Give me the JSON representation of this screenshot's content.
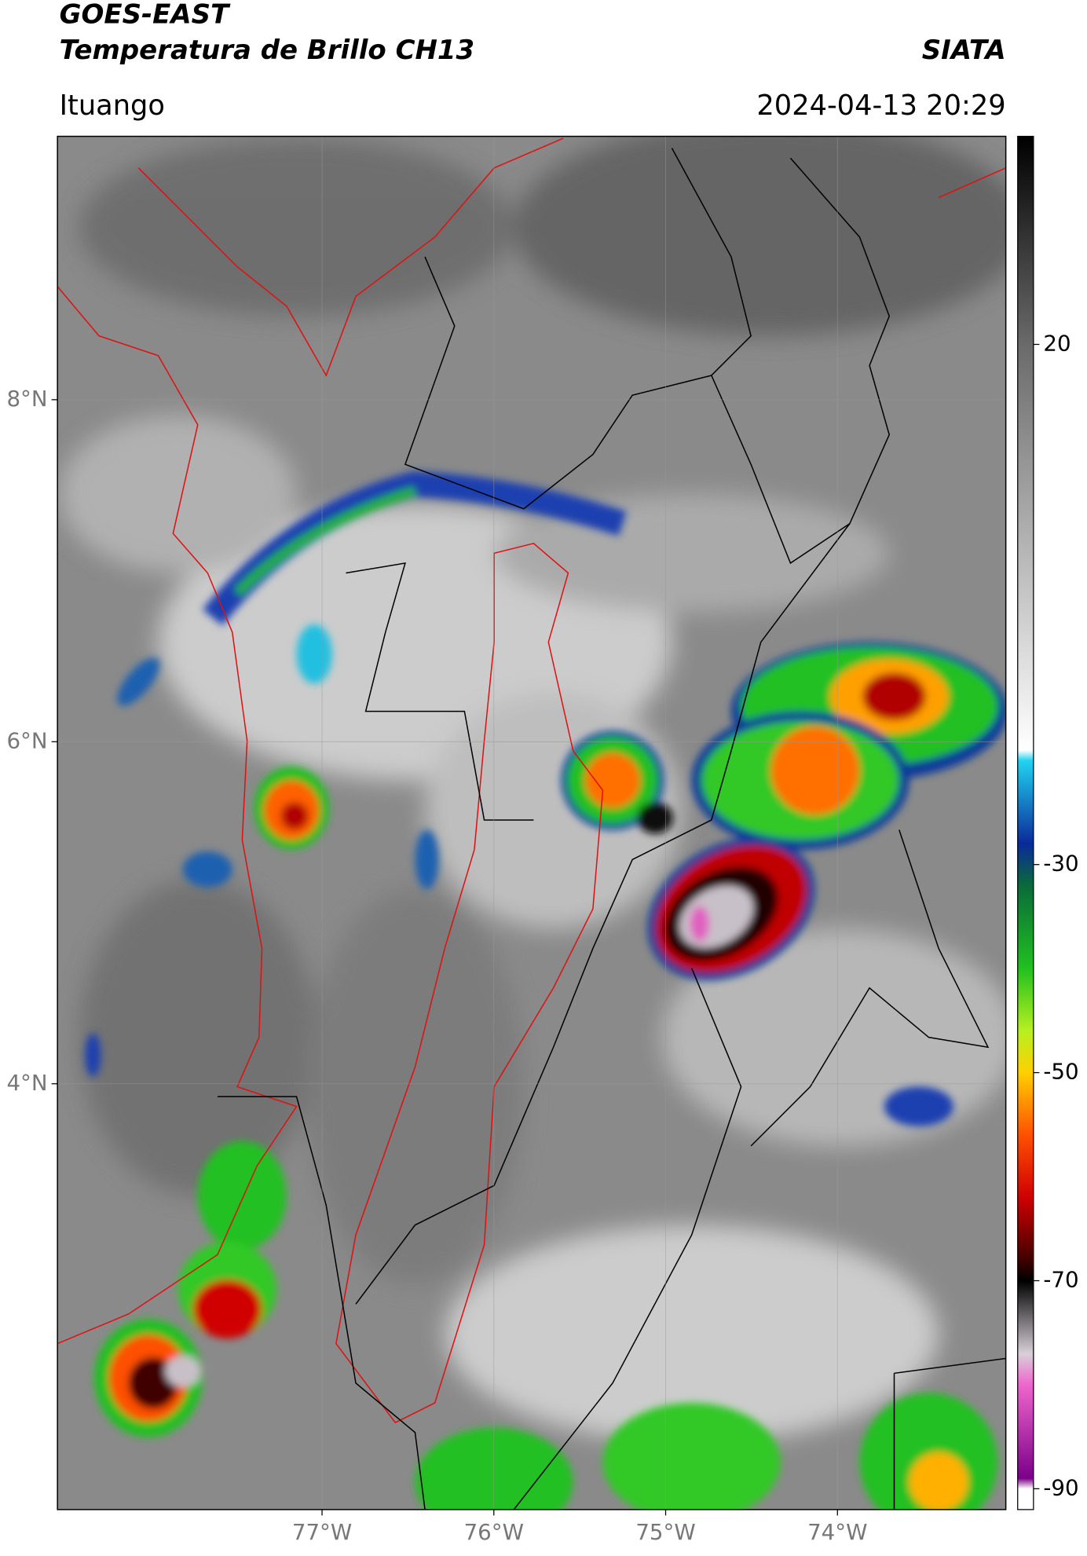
{
  "header": {
    "title": "GOES-EAST",
    "subtitle": "Temperatura de Brillo CH13",
    "source": "SIATA",
    "location": "Ituango",
    "timestamp": "2024-04-13 20:29"
  },
  "map": {
    "xlim": [
      -78.54,
      -73.02
    ],
    "ylim": [
      1.51,
      9.54
    ],
    "xticks": [
      {
        "value": -77,
        "label": "77°W"
      },
      {
        "value": -76,
        "label": "76°W"
      },
      {
        "value": -75,
        "label": "75°W"
      },
      {
        "value": -74,
        "label": "74°W"
      }
    ],
    "yticks": [
      {
        "value": 8,
        "label": "8°N"
      },
      {
        "value": 6,
        "label": "6°N"
      },
      {
        "value": 4,
        "label": "4°N"
      }
    ],
    "grid": true
  },
  "colorbar": {
    "lim": [
      -92,
      40
    ],
    "ticks": [
      20,
      -30,
      -50,
      -70,
      -90
    ],
    "colors": [
      {
        "value": 40,
        "color": "#000000"
      },
      {
        "value": 20,
        "color": "#6a6a6a"
      },
      {
        "value": -19,
        "color": "#ffffff"
      },
      {
        "value": -20,
        "color": "#22d3f0"
      },
      {
        "value": -28,
        "color": "#0a2a9a"
      },
      {
        "value": -32,
        "color": "#0a6a3a"
      },
      {
        "value": -40,
        "color": "#22c020"
      },
      {
        "value": -46,
        "color": "#b8f020"
      },
      {
        "value": -50,
        "color": "#ffd000"
      },
      {
        "value": -56,
        "color": "#ff5000"
      },
      {
        "value": -62,
        "color": "#d00000"
      },
      {
        "value": -68,
        "color": "#400000"
      },
      {
        "value": -70,
        "color": "#000000"
      },
      {
        "value": -77,
        "color": "#d8d0d8"
      },
      {
        "value": -80,
        "color": "#ee66cc"
      },
      {
        "value": -89,
        "color": "#7a0088"
      },
      {
        "value": -90,
        "color": "#ffffff"
      }
    ]
  }
}
